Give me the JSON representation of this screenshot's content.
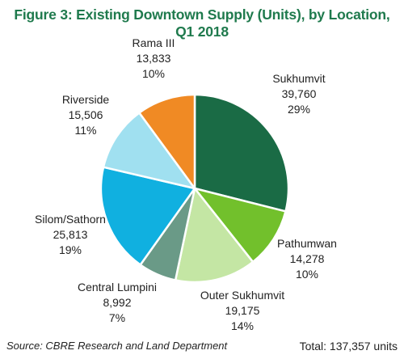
{
  "chart_data": {
    "type": "pie",
    "title": "Figure 3: Existing Downtown Supply (Units), by Location, Q1 2018",
    "slices": [
      {
        "name": "Sukhumvit",
        "value": 39760,
        "value_label": "39,760",
        "percent_label": "29%",
        "color": "#1a6b45"
      },
      {
        "name": "Pathumwan",
        "value": 14278,
        "value_label": "14,278",
        "percent_label": "10%",
        "color": "#72c02c"
      },
      {
        "name": "Outer Sukhumvit",
        "value": 19175,
        "value_label": "19,175",
        "percent_label": "14%",
        "color": "#c4e6a4"
      },
      {
        "name": "Central Lumpini",
        "value": 8992,
        "value_label": "8,992",
        "percent_label": "7%",
        "color": "#6a9a87"
      },
      {
        "name": "Silom/Sathorn",
        "value": 25813,
        "value_label": "25,813",
        "percent_label": "19%",
        "color": "#10b0e0"
      },
      {
        "name": "Riverside",
        "value": 15506,
        "value_label": "15,506",
        "percent_label": "11%",
        "color": "#a0e0f0"
      },
      {
        "name": "Rama III",
        "value": 13833,
        "value_label": "13,833",
        "percent_label": "10%",
        "color": "#f08a24"
      }
    ],
    "start": "12 o'clock",
    "direction": "clockwise"
  },
  "footer": {
    "source": "Source: CBRE Research and Land Department",
    "total": "Total: 137,357 units"
  }
}
